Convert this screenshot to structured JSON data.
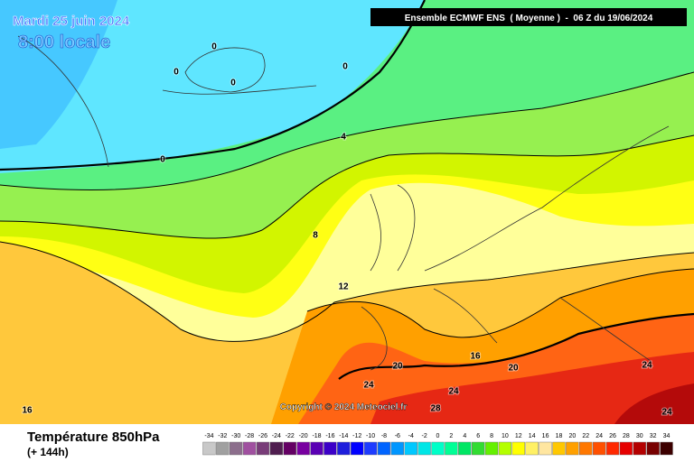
{
  "header": {
    "date": "Mardi 25 juin 2024",
    "time": "8:00 locale",
    "model": "Ensemble ECMWF ENS  ( Moyenne )  -  06 Z du 19/06/2024"
  },
  "contour_labels": [
    "0",
    "0",
    "0",
    "0",
    "0",
    "4",
    "8",
    "12",
    "16",
    "20",
    "20",
    "24",
    "24",
    "24",
    "24",
    "28",
    "16"
  ],
  "copyright": "Copyright © 2024 Meteociel.fr",
  "footer": {
    "title": "Température 850hPa",
    "subtitle": "(+ 144h)"
  },
  "legend": {
    "labels": [
      "-34",
      "-32",
      "-30",
      "-28",
      "-26",
      "-24",
      "-22",
      "-20",
      "-18",
      "-16",
      "-14",
      "-12",
      "-10",
      "-8",
      "-6",
      "-4",
      "-2",
      "0",
      "2",
      "4",
      "6",
      "8",
      "10",
      "12",
      "14",
      "16",
      "18",
      "20",
      "22",
      "24",
      "26",
      "28",
      "30",
      "32",
      "34"
    ],
    "colors": [
      "#c8c8c8",
      "#a0a0a0",
      "#8c6e8c",
      "#a050a0",
      "#783c78",
      "#501e50",
      "#640064",
      "#7800a0",
      "#5a00b4",
      "#3c00c8",
      "#1e1edc",
      "#0000ff",
      "#1e3cff",
      "#0064ff",
      "#0096ff",
      "#00c8ff",
      "#00e6e6",
      "#00ffc8",
      "#00ff96",
      "#00e664",
      "#32dc32",
      "#64f000",
      "#b4ff00",
      "#ffff00",
      "#fff064",
      "#ffe6a0",
      "#ffc800",
      "#ffa000",
      "#ff7800",
      "#ff5000",
      "#ff2800",
      "#e60000",
      "#b40000",
      "#780000",
      "#3c0000"
    ]
  }
}
